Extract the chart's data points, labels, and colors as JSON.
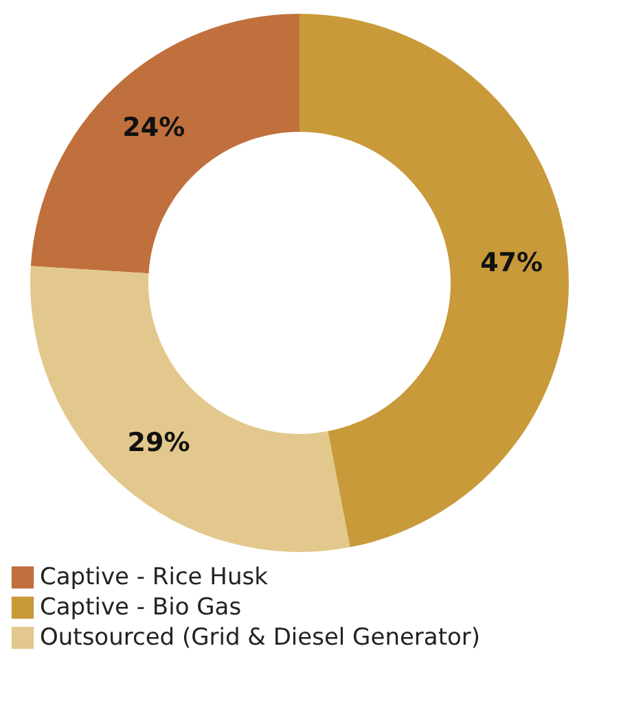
{
  "chart_data": {
    "type": "donut",
    "categories": [
      "Captive - Rice Husk",
      "Captive - Bio Gas",
      "Outsourced (Grid & Diesel Generator)"
    ],
    "values": [
      24,
      47,
      29
    ],
    "colors": [
      "#c0703c",
      "#c99a3a",
      "#e3c88d"
    ],
    "value_labels": [
      "24%",
      "47%",
      "29%"
    ],
    "legend": "bottom"
  }
}
